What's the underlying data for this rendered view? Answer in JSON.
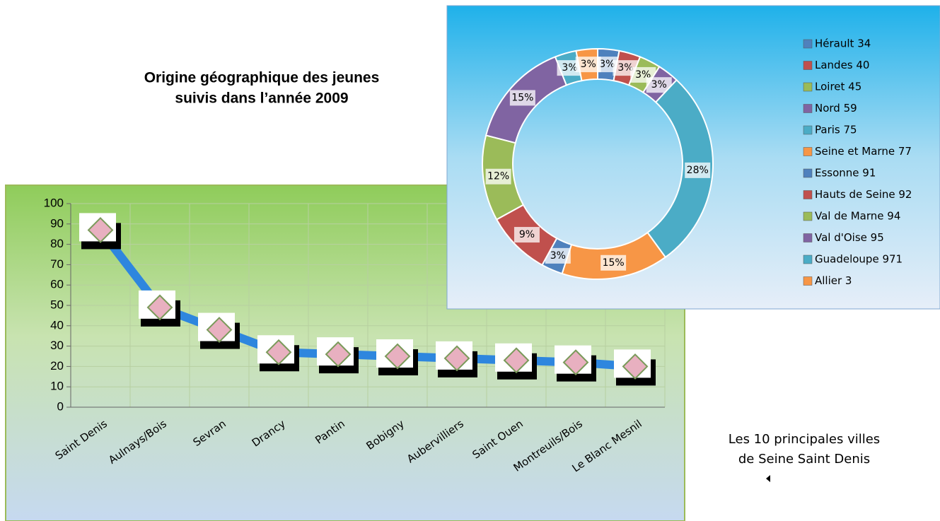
{
  "title": [
    "Origine géographique des jeunes",
    "suivis dans l’année 2009"
  ],
  "caption": [
    "Les 10 principales villes",
    "de Seine Saint Denis"
  ],
  "chart_data": [
    {
      "type": "line",
      "categories": [
        "Saint Denis",
        "Aulnays/Bois",
        "Sevran",
        "Drancy",
        "Pantin",
        "Bobigny",
        "Aubervilliers",
        "Saint Ouen",
        "Montreuils/Bois",
        "Le Blanc Mesnil"
      ],
      "values": [
        87,
        49,
        38,
        27,
        26,
        25,
        24,
        23,
        22,
        20
      ],
      "color": "#2e86de",
      "ylim": [
        0,
        100
      ],
      "yticks": [
        0,
        10,
        20,
        30,
        40,
        50,
        60,
        70,
        80,
        90,
        100
      ],
      "grid": true
    },
    {
      "type": "donut",
      "categories": [
        "Hérault 34",
        "Landes 40",
        "Loiret 45",
        "Nord 59",
        "Paris 75",
        "Seine et Marne 77",
        "Essonne 91",
        "Hauts de Seine 92",
        "Val de Marne 94",
        "Val d'Oise 95",
        "Guadeloupe 971",
        "Allier 3"
      ],
      "values": [
        3,
        3,
        3,
        3,
        28,
        15,
        3,
        9,
        12,
        15,
        3,
        3
      ],
      "value_labels": [
        "3%",
        "3%",
        "3%",
        "3%",
        "28%",
        "15%",
        "3%",
        "9%",
        "12%",
        "15%",
        "3%",
        "3%"
      ],
      "colors": [
        "#4f81bd",
        "#c0504d",
        "#9bbb59",
        "#8064a2",
        "#4bacc6",
        "#f79646",
        "#4f81bd",
        "#c0504d",
        "#9bbb59",
        "#8064a2",
        "#4bacc6",
        "#f79646"
      ],
      "legend": "right"
    }
  ]
}
